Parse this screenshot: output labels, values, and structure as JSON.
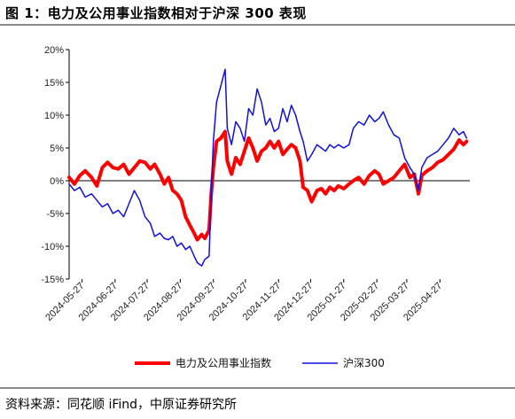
{
  "title": "图 1：电力及公用事业指数相对于沪深 300 表现",
  "source": "资料来源：同花顺 iFind，中原证券研究所",
  "chart_data": {
    "type": "line",
    "title": "",
    "xlabel": "",
    "ylabel": "",
    "ylim": [
      -15,
      20
    ],
    "yticks": [
      -15,
      -10,
      -5,
      0,
      5,
      10,
      15,
      20
    ],
    "ytick_labels": [
      "-15%",
      "-10%",
      "-5%",
      "0%",
      "5%",
      "10%",
      "15%",
      "20%"
    ],
    "xlim": [
      "2024-05-15",
      "2025-05-25"
    ],
    "xtick_labels": [
      "2024-05-27",
      "2024-06-27",
      "2024-07-27",
      "2024-08-27",
      "2024-09-27",
      "2024-10-27",
      "2024-11-27",
      "2024-12-27",
      "2025-01-27",
      "2025-02-27",
      "2025-03-27",
      "2025-04-27"
    ],
    "grid": false,
    "legend": "bottom",
    "series": [
      {
        "name": "电力及公用事业指数",
        "color": "#ff0000",
        "points": [
          [
            "2024-05-15",
            0.5
          ],
          [
            "2024-05-20",
            -0.5
          ],
          [
            "2024-05-25",
            0.8
          ],
          [
            "2024-05-30",
            1.5
          ],
          [
            "2024-06-05",
            0.5
          ],
          [
            "2024-06-10",
            -0.8
          ],
          [
            "2024-06-15",
            2.0
          ],
          [
            "2024-06-20",
            2.8
          ],
          [
            "2024-06-25",
            2.0
          ],
          [
            "2024-06-30",
            1.8
          ],
          [
            "2024-07-05",
            2.5
          ],
          [
            "2024-07-10",
            1.0
          ],
          [
            "2024-07-15",
            2.0
          ],
          [
            "2024-07-20",
            3.0
          ],
          [
            "2024-07-25",
            2.8
          ],
          [
            "2024-07-30",
            1.8
          ],
          [
            "2024-08-03",
            2.5
          ],
          [
            "2024-08-08",
            1.0
          ],
          [
            "2024-08-12",
            -0.5
          ],
          [
            "2024-08-16",
            0.5
          ],
          [
            "2024-08-20",
            -1.5
          ],
          [
            "2024-08-24",
            -2.0
          ],
          [
            "2024-08-28",
            -3.0
          ],
          [
            "2024-09-01",
            -5.5
          ],
          [
            "2024-09-05",
            -6.8
          ],
          [
            "2024-09-09",
            -8.0
          ],
          [
            "2024-09-12",
            -9.0
          ],
          [
            "2024-09-16",
            -8.2
          ],
          [
            "2024-09-19",
            -8.8
          ],
          [
            "2024-09-23",
            -7.5
          ],
          [
            "2024-09-25",
            -2.0
          ],
          [
            "2024-09-27",
            2.0
          ],
          [
            "2024-09-30",
            6.0
          ],
          [
            "2024-10-04",
            6.5
          ],
          [
            "2024-10-08",
            7.5
          ],
          [
            "2024-10-10",
            3.0
          ],
          [
            "2024-10-14",
            1.0
          ],
          [
            "2024-10-18",
            3.5
          ],
          [
            "2024-10-22",
            2.5
          ],
          [
            "2024-10-26",
            4.5
          ],
          [
            "2024-10-30",
            6.5
          ],
          [
            "2024-11-03",
            5.0
          ],
          [
            "2024-11-07",
            3.0
          ],
          [
            "2024-11-11",
            4.5
          ],
          [
            "2024-11-15",
            5.0
          ],
          [
            "2024-11-19",
            6.0
          ],
          [
            "2024-11-23",
            5.0
          ],
          [
            "2024-11-27",
            6.0
          ],
          [
            "2024-12-01",
            4.0
          ],
          [
            "2024-12-05",
            4.8
          ],
          [
            "2024-12-09",
            5.5
          ],
          [
            "2024-12-13",
            5.0
          ],
          [
            "2024-12-17",
            3.0
          ],
          [
            "2024-12-20",
            -1.0
          ],
          [
            "2024-12-24",
            -1.5
          ],
          [
            "2024-12-28",
            -3.2
          ],
          [
            "2025-01-02",
            -1.5
          ],
          [
            "2025-01-06",
            -1.2
          ],
          [
            "2025-01-10",
            -2.0
          ],
          [
            "2025-01-14",
            -1.0
          ],
          [
            "2025-01-18",
            -1.5
          ],
          [
            "2025-01-22",
            -0.8
          ],
          [
            "2025-01-27",
            -1.2
          ],
          [
            "2025-02-01",
            -0.5
          ],
          [
            "2025-02-05",
            0.0
          ],
          [
            "2025-02-10",
            0.5
          ],
          [
            "2025-02-15",
            -0.5
          ],
          [
            "2025-02-20",
            0.8
          ],
          [
            "2025-02-25",
            1.5
          ],
          [
            "2025-03-01",
            1.0
          ],
          [
            "2025-03-05",
            -0.5
          ],
          [
            "2025-03-10",
            0.0
          ],
          [
            "2025-03-15",
            0.5
          ],
          [
            "2025-03-20",
            1.5
          ],
          [
            "2025-03-25",
            2.5
          ],
          [
            "2025-03-30",
            0.5
          ],
          [
            "2025-04-03",
            1.0
          ],
          [
            "2025-04-07",
            -2.0
          ],
          [
            "2025-04-10",
            0.8
          ],
          [
            "2025-04-15",
            1.5
          ],
          [
            "2025-04-20",
            2.0
          ],
          [
            "2025-04-25",
            2.8
          ],
          [
            "2025-04-30",
            3.2
          ],
          [
            "2025-05-05",
            4.0
          ],
          [
            "2025-05-10",
            4.8
          ],
          [
            "2025-05-15",
            6.2
          ],
          [
            "2025-05-19",
            5.5
          ],
          [
            "2025-05-22",
            6.0
          ]
        ]
      },
      {
        "name": "沪深300",
        "color": "#1010e0",
        "points": [
          [
            "2024-05-15",
            -0.5
          ],
          [
            "2024-05-20",
            -1.5
          ],
          [
            "2024-05-25",
            -1.0
          ],
          [
            "2024-05-30",
            -2.5
          ],
          [
            "2024-06-05",
            -2.0
          ],
          [
            "2024-06-10",
            -3.0
          ],
          [
            "2024-06-15",
            -4.0
          ],
          [
            "2024-06-20",
            -3.5
          ],
          [
            "2024-06-25",
            -5.0
          ],
          [
            "2024-06-30",
            -4.5
          ],
          [
            "2024-07-05",
            -5.5
          ],
          [
            "2024-07-10",
            -3.5
          ],
          [
            "2024-07-15",
            -1.5
          ],
          [
            "2024-07-20",
            -3.0
          ],
          [
            "2024-07-25",
            -5.5
          ],
          [
            "2024-07-30",
            -6.5
          ],
          [
            "2024-08-03",
            -8.5
          ],
          [
            "2024-08-08",
            -8.0
          ],
          [
            "2024-08-12",
            -8.8
          ],
          [
            "2024-08-16",
            -9.0
          ],
          [
            "2024-08-20",
            -8.5
          ],
          [
            "2024-08-24",
            -10.0
          ],
          [
            "2024-08-28",
            -9.5
          ],
          [
            "2024-09-01",
            -10.5
          ],
          [
            "2024-09-05",
            -10.0
          ],
          [
            "2024-09-09",
            -11.5
          ],
          [
            "2024-09-12",
            -12.5
          ],
          [
            "2024-09-16",
            -13.0
          ],
          [
            "2024-09-19",
            -12.0
          ],
          [
            "2024-09-23",
            -11.5
          ],
          [
            "2024-09-25",
            -2.0
          ],
          [
            "2024-09-27",
            6.0
          ],
          [
            "2024-09-30",
            12.0
          ],
          [
            "2024-10-04",
            14.5
          ],
          [
            "2024-10-08",
            17.0
          ],
          [
            "2024-10-10",
            8.0
          ],
          [
            "2024-10-14",
            5.5
          ],
          [
            "2024-10-18",
            9.0
          ],
          [
            "2024-10-22",
            8.0
          ],
          [
            "2024-10-26",
            6.0
          ],
          [
            "2024-10-30",
            11.0
          ],
          [
            "2024-11-03",
            10.0
          ],
          [
            "2024-11-07",
            14.0
          ],
          [
            "2024-11-11",
            12.0
          ],
          [
            "2024-11-15",
            8.5
          ],
          [
            "2024-11-19",
            9.5
          ],
          [
            "2024-11-23",
            7.5
          ],
          [
            "2024-11-27",
            8.0
          ],
          [
            "2024-12-01",
            11.0
          ],
          [
            "2024-12-05",
            9.0
          ],
          [
            "2024-12-09",
            11.5
          ],
          [
            "2024-12-13",
            10.0
          ],
          [
            "2024-12-17",
            7.5
          ],
          [
            "2024-12-20",
            6.0
          ],
          [
            "2024-12-24",
            3.0
          ],
          [
            "2024-12-28",
            4.0
          ],
          [
            "2025-01-02",
            5.5
          ],
          [
            "2025-01-06",
            5.0
          ],
          [
            "2025-01-10",
            4.5
          ],
          [
            "2025-01-14",
            5.5
          ],
          [
            "2025-01-18",
            5.0
          ],
          [
            "2025-01-22",
            5.5
          ],
          [
            "2025-01-27",
            5.0
          ],
          [
            "2025-02-01",
            5.5
          ],
          [
            "2025-02-05",
            8.0
          ],
          [
            "2025-02-10",
            9.0
          ],
          [
            "2025-02-15",
            8.5
          ],
          [
            "2025-02-20",
            10.0
          ],
          [
            "2025-02-25",
            9.0
          ],
          [
            "2025-03-01",
            9.5
          ],
          [
            "2025-03-05",
            10.5
          ],
          [
            "2025-03-10",
            8.5
          ],
          [
            "2025-03-15",
            7.0
          ],
          [
            "2025-03-20",
            6.5
          ],
          [
            "2025-03-25",
            3.5
          ],
          [
            "2025-03-30",
            2.0
          ],
          [
            "2025-04-03",
            1.0
          ],
          [
            "2025-04-07",
            -1.5
          ],
          [
            "2025-04-10",
            2.0
          ],
          [
            "2025-04-15",
            3.5
          ],
          [
            "2025-04-20",
            4.0
          ],
          [
            "2025-04-25",
            4.5
          ],
          [
            "2025-04-30",
            5.5
          ],
          [
            "2025-05-05",
            6.5
          ],
          [
            "2025-05-10",
            8.0
          ],
          [
            "2025-05-15",
            7.0
          ],
          [
            "2025-05-19",
            7.5
          ],
          [
            "2025-05-22",
            6.5
          ]
        ]
      }
    ]
  }
}
